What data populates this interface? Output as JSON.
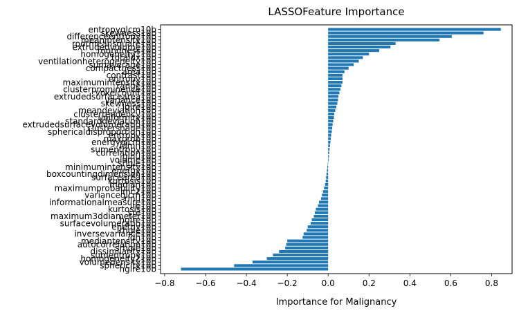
{
  "chart_data": {
    "type": "bar",
    "orientation": "horizontal",
    "title": "LASSOFeature Importance",
    "xlabel": "Importance for Malignancy",
    "ylabel": "",
    "xlim": [
      -0.82,
      0.9
    ],
    "xticks": [
      -0.8,
      -0.6,
      -0.4,
      -0.2,
      0.0,
      0.2,
      0.4,
      0.6,
      0.8
    ],
    "xtick_labels": [
      "−0.8",
      "−0.6",
      "−0.4",
      "−0.2",
      "0.0",
      "0.2",
      "0.4",
      "0.6",
      "0.8"
    ],
    "grid": false,
    "bar_color": "#1f77b4",
    "categories": [
      "entropyglcm10b",
      "skewness10b",
      "differenceentropy10b",
      "meanintensity10b",
      "rootmeansquare10b",
      "extrudedvolume10b",
      "roundness10b",
      "homogeneity110b",
      "totaldx10b",
      "ventilationheterogeneity10b",
      "sumaverage10b",
      "compactness10b",
      "area10b",
      "contrast10b",
      "entropy10b",
      "maximumintensity10b",
      "range10b",
      "clusterprominence10b",
      "voxelcount10b",
      "extrudedsurfacearea10b",
      "variance10b",
      "skewness10b",
      "lglre10b",
      "meandeviation10b",
      "clustertendency10b",
      "uniformity10b",
      "standarddeviation10b",
      "extrudedsurfacevolumeratio10b",
      "clustershade10b",
      "sphericaldisproportion10b",
      "entropy10b",
      "maxprob10b",
      "energyglcm10b",
      "idmn10b",
      "sumentropy10b",
      "correlation10b",
      "glnu10b",
      "volume10b",
      "srlgle10b",
      "minimumintensity10b",
      "energy10b",
      "boxcountingdimension10b",
      "surfacearea10b",
      "kurtosis10b",
      "median10b",
      "maximumprobability10b",
      "imc210b",
      "varianceglcm10b",
      "rlnu10b",
      "informationalmeasure10b",
      "lre10b",
      "kurtosis10b",
      "sre10b",
      "maximum3ddiameter10b",
      "hglre10b",
      "surfacevolumeratio10b",
      "energy10b",
      "lrhgle10b",
      "inversevariance10b",
      "idn10b",
      "mediantensity10b",
      "autocorrelation10b",
      "srhgle10b",
      "dissimilarity10b",
      "sumentropy10b",
      "homogeneity210b",
      "volumedensity10b",
      "sphericity10b",
      "hglre10b"
    ],
    "values": [
      0.845,
      0.76,
      0.605,
      0.545,
      0.33,
      0.305,
      0.25,
      0.2,
      0.17,
      0.15,
      0.125,
      0.1,
      0.08,
      0.07,
      0.07,
      0.07,
      0.065,
      0.06,
      0.055,
      0.05,
      0.048,
      0.045,
      0.04,
      0.035,
      0.03,
      0.028,
      0.025,
      0.022,
      0.02,
      0.018,
      0.015,
      0.013,
      0.011,
      0.009,
      0.007,
      0.005,
      0.004,
      0.003,
      -0.002,
      -0.004,
      -0.006,
      -0.008,
      -0.01,
      -0.012,
      -0.015,
      -0.02,
      -0.025,
      -0.03,
      -0.035,
      -0.045,
      -0.05,
      -0.06,
      -0.065,
      -0.07,
      -0.08,
      -0.085,
      -0.1,
      -0.105,
      -0.12,
      -0.125,
      -0.2,
      -0.205,
      -0.21,
      -0.24,
      -0.27,
      -0.3,
      -0.37,
      -0.46,
      -0.72
    ]
  }
}
